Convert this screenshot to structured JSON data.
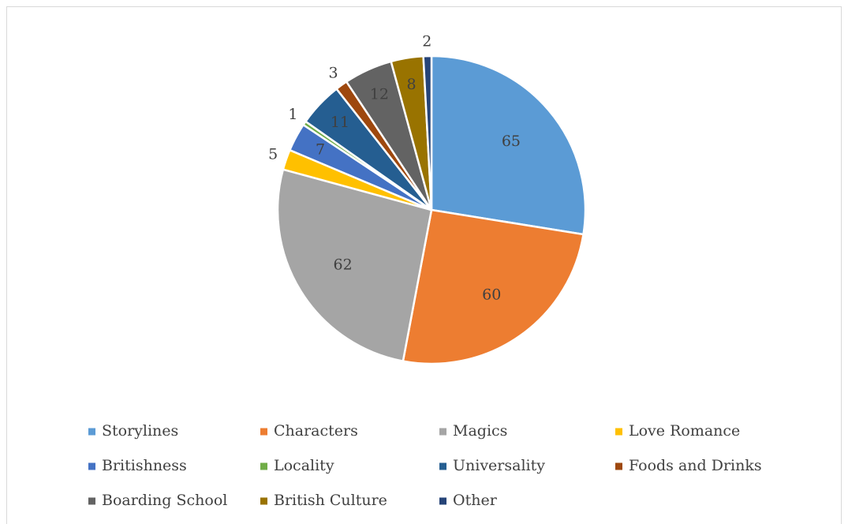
{
  "chart_data": {
    "type": "pie",
    "categories": [
      "Storylines",
      "Characters",
      "Magics",
      "Love Romance",
      "Britishness",
      "Locality",
      "Universality",
      "Foods and Drinks",
      "Boarding School",
      "British Culture",
      "Other"
    ],
    "values": [
      65,
      60,
      62,
      5,
      7,
      1,
      11,
      3,
      12,
      8,
      2
    ],
    "colors": [
      "#5b9bd5",
      "#ed7d31",
      "#a5a5a5",
      "#ffc000",
      "#4472c4",
      "#70ad47",
      "#255e91",
      "#9e480e",
      "#636363",
      "#997300",
      "#264478"
    ],
    "legend": "bottom"
  }
}
